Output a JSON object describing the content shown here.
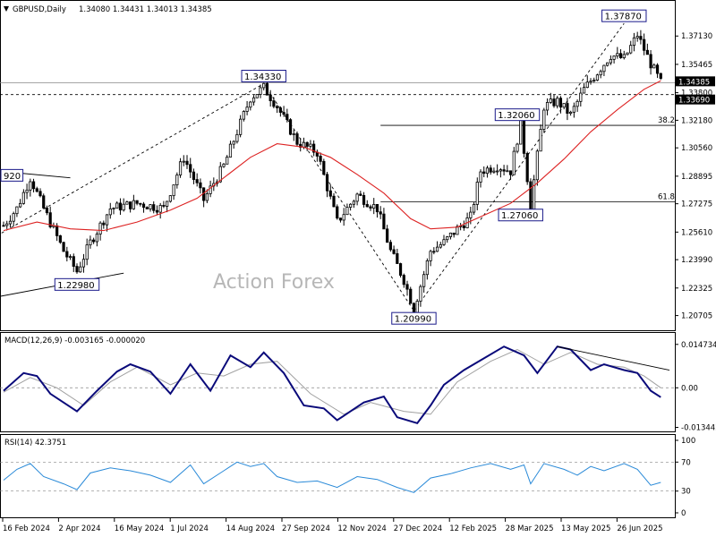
{
  "header": {
    "symbol": "GBPUSD,Daily",
    "ohlc": "1.34080 1.34431 1.34013 1.34385"
  },
  "watermark": "Action Forex",
  "colors": {
    "candle": "#000000",
    "ma": "#dd2222",
    "macd_main": "#0a0a7a",
    "macd_signal": "#a0a0a0",
    "rsi": "#2a8ad8",
    "price_tag_bg": "#000000"
  },
  "chart_data": [
    {
      "type": "candlestick",
      "title": "GBPUSD,Daily",
      "ylim": [
        1.2,
        1.383
      ],
      "y_ticks": [
        "1.37130",
        "1.35465",
        "1.33800",
        "1.32180",
        "1.30560",
        "1.28895",
        "1.27275",
        "1.25610",
        "1.23990",
        "1.22325",
        "1.20705"
      ],
      "x_ticks": [
        "16 Feb 2024",
        "2 Apr 2024",
        "16 May 2024",
        "1 Jul 2024",
        "14 Aug 2024",
        "27 Sep 2024",
        "12 Nov 2024",
        "27 Dec 2024",
        "12 Feb 2025",
        "28 Mar 2025",
        "13 May 2025",
        "26 Jun 2025"
      ],
      "close_path": [
        {
          "t": 0,
          "v": 1.26
        },
        {
          "t": 4,
          "v": 1.27
        },
        {
          "t": 8,
          "v": 1.288
        },
        {
          "t": 12,
          "v": 1.27
        },
        {
          "t": 18,
          "v": 1.245
        },
        {
          "t": 22,
          "v": 1.233
        },
        {
          "t": 26,
          "v": 1.25
        },
        {
          "t": 32,
          "v": 1.27
        },
        {
          "t": 40,
          "v": 1.273
        },
        {
          "t": 48,
          "v": 1.27
        },
        {
          "t": 54,
          "v": 1.3
        },
        {
          "t": 60,
          "v": 1.275
        },
        {
          "t": 66,
          "v": 1.295
        },
        {
          "t": 70,
          "v": 1.315
        },
        {
          "t": 74,
          "v": 1.335
        },
        {
          "t": 78,
          "v": 1.341
        },
        {
          "t": 82,
          "v": 1.33
        },
        {
          "t": 88,
          "v": 1.309
        },
        {
          "t": 94,
          "v": 1.303
        },
        {
          "t": 100,
          "v": 1.262
        },
        {
          "t": 106,
          "v": 1.278
        },
        {
          "t": 112,
          "v": 1.27
        },
        {
          "t": 116,
          "v": 1.245
        },
        {
          "t": 120,
          "v": 1.228
        },
        {
          "t": 123,
          "v": 1.211
        },
        {
          "t": 128,
          "v": 1.245
        },
        {
          "t": 132,
          "v": 1.25
        },
        {
          "t": 136,
          "v": 1.258
        },
        {
          "t": 140,
          "v": 1.265
        },
        {
          "t": 143,
          "v": 1.292
        },
        {
          "t": 148,
          "v": 1.295
        },
        {
          "t": 152,
          "v": 1.292
        },
        {
          "t": 155,
          "v": 1.32
        },
        {
          "t": 158,
          "v": 1.272
        },
        {
          "t": 162,
          "v": 1.33
        },
        {
          "t": 166,
          "v": 1.333
        },
        {
          "t": 170,
          "v": 1.325
        },
        {
          "t": 174,
          "v": 1.34
        },
        {
          "t": 178,
          "v": 1.35
        },
        {
          "t": 182,
          "v": 1.36
        },
        {
          "t": 186,
          "v": 1.358
        },
        {
          "t": 190,
          "v": 1.372
        },
        {
          "t": 194,
          "v": 1.355
        },
        {
          "t": 197,
          "v": 1.3439
        }
      ],
      "moving_average": [
        {
          "t": 0,
          "v": 1.257
        },
        {
          "t": 10,
          "v": 1.262
        },
        {
          "t": 20,
          "v": 1.258
        },
        {
          "t": 30,
          "v": 1.257
        },
        {
          "t": 40,
          "v": 1.262
        },
        {
          "t": 50,
          "v": 1.269
        },
        {
          "t": 58,
          "v": 1.276
        },
        {
          "t": 66,
          "v": 1.288
        },
        {
          "t": 74,
          "v": 1.3
        },
        {
          "t": 82,
          "v": 1.308
        },
        {
          "t": 90,
          "v": 1.306
        },
        {
          "t": 98,
          "v": 1.3
        },
        {
          "t": 106,
          "v": 1.29
        },
        {
          "t": 114,
          "v": 1.279
        },
        {
          "t": 122,
          "v": 1.264
        },
        {
          "t": 128,
          "v": 1.258
        },
        {
          "t": 136,
          "v": 1.259
        },
        {
          "t": 144,
          "v": 1.266
        },
        {
          "t": 152,
          "v": 1.273
        },
        {
          "t": 160,
          "v": 1.285
        },
        {
          "t": 168,
          "v": 1.299
        },
        {
          "t": 176,
          "v": 1.315
        },
        {
          "t": 184,
          "v": 1.328
        },
        {
          "t": 192,
          "v": 1.34
        },
        {
          "t": 197,
          "v": 1.345
        }
      ],
      "annotations": [
        {
          "label": "1.37870",
          "t": 186,
          "v": 1.3787
        },
        {
          "label": "1.34330",
          "t": 78,
          "v": 1.3433
        },
        {
          "label": "1.32060",
          "t": 154,
          "v": 1.3206
        },
        {
          "label": "1.27060",
          "t": 155,
          "v": 1.2706
        },
        {
          "label": "1.22980",
          "t": 22,
          "v": 1.2298
        },
        {
          "label": "1.20990",
          "t": 123,
          "v": 1.2099
        },
        {
          "label": "920",
          "t": 0,
          "v": 1.2892
        }
      ],
      "fib_levels": [
        {
          "label": "38.2",
          "v": 1.3188
        },
        {
          "label": "61.8",
          "v": 1.2738
        }
      ],
      "horizontal_lines": [
        {
          "label": "1.34385",
          "v": 1.3439
        },
        {
          "label": "1.33690",
          "v": 1.3369
        }
      ],
      "trendlines": [
        {
          "from": {
            "t": -2,
            "v": 1.254
          },
          "to": {
            "t": 78,
            "v": 1.3433
          }
        },
        {
          "from": {
            "t": 78,
            "v": 1.3433
          },
          "to": {
            "t": 123,
            "v": 1.2099
          }
        },
        {
          "from": {
            "t": 123,
            "v": 1.2099
          },
          "to": {
            "t": 186,
            "v": 1.3787
          }
        },
        {
          "from": {
            "t": -2,
            "v": 1.218
          },
          "to": {
            "t": 36,
            "v": 1.232
          }
        },
        {
          "from": {
            "t": -2,
            "v": 1.292
          },
          "to": {
            "t": 20,
            "v": 1.288
          }
        }
      ]
    },
    {
      "type": "line",
      "title": "MACD(12,26,9) -0.003165 -0.000020",
      "ylim": [
        -0.0142,
        0.0168
      ],
      "y_ticks": [
        "0.014734",
        "0.00",
        "-0.013442"
      ],
      "series": [
        {
          "name": "main",
          "values": [
            {
              "t": 0,
              "v": -0.001
            },
            {
              "t": 6,
              "v": 0.005
            },
            {
              "t": 10,
              "v": 0.004
            },
            {
              "t": 14,
              "v": -0.002
            },
            {
              "t": 22,
              "v": -0.008
            },
            {
              "t": 28,
              "v": -0.001
            },
            {
              "t": 34,
              "v": 0.0055
            },
            {
              "t": 38,
              "v": 0.008
            },
            {
              "t": 44,
              "v": 0.0055
            },
            {
              "t": 50,
              "v": -0.002
            },
            {
              "t": 56,
              "v": 0.008
            },
            {
              "t": 62,
              "v": -0.001
            },
            {
              "t": 68,
              "v": 0.011
            },
            {
              "t": 74,
              "v": 0.007
            },
            {
              "t": 78,
              "v": 0.012
            },
            {
              "t": 84,
              "v": 0.005
            },
            {
              "t": 90,
              "v": -0.006
            },
            {
              "t": 96,
              "v": -0.007
            },
            {
              "t": 100,
              "v": -0.011
            },
            {
              "t": 104,
              "v": -0.008
            },
            {
              "t": 108,
              "v": -0.005
            },
            {
              "t": 114,
              "v": -0.003
            },
            {
              "t": 118,
              "v": -0.01
            },
            {
              "t": 124,
              "v": -0.012
            },
            {
              "t": 128,
              "v": -0.006
            },
            {
              "t": 132,
              "v": 0.001
            },
            {
              "t": 138,
              "v": 0.006
            },
            {
              "t": 144,
              "v": 0.01
            },
            {
              "t": 150,
              "v": 0.014
            },
            {
              "t": 156,
              "v": 0.011
            },
            {
              "t": 160,
              "v": 0.005
            },
            {
              "t": 166,
              "v": 0.014
            },
            {
              "t": 170,
              "v": 0.013
            },
            {
              "t": 176,
              "v": 0.006
            },
            {
              "t": 180,
              "v": 0.008
            },
            {
              "t": 186,
              "v": 0.006
            },
            {
              "t": 190,
              "v": 0.005
            },
            {
              "t": 194,
              "v": -0.001
            },
            {
              "t": 197,
              "v": -0.0032
            }
          ]
        },
        {
          "name": "signal",
          "values": [
            {
              "t": 0,
              "v": -0.0015
            },
            {
              "t": 8,
              "v": 0.0035
            },
            {
              "t": 16,
              "v": 0.0
            },
            {
              "t": 24,
              "v": -0.006
            },
            {
              "t": 32,
              "v": 0.002
            },
            {
              "t": 40,
              "v": 0.007
            },
            {
              "t": 50,
              "v": 0.001
            },
            {
              "t": 58,
              "v": 0.005
            },
            {
              "t": 66,
              "v": 0.004
            },
            {
              "t": 74,
              "v": 0.008
            },
            {
              "t": 82,
              "v": 0.009
            },
            {
              "t": 92,
              "v": -0.002
            },
            {
              "t": 102,
              "v": -0.009
            },
            {
              "t": 110,
              "v": -0.005
            },
            {
              "t": 120,
              "v": -0.008
            },
            {
              "t": 128,
              "v": -0.009
            },
            {
              "t": 136,
              "v": 0.002
            },
            {
              "t": 146,
              "v": 0.009
            },
            {
              "t": 154,
              "v": 0.013
            },
            {
              "t": 162,
              "v": 0.008
            },
            {
              "t": 170,
              "v": 0.012
            },
            {
              "t": 178,
              "v": 0.008
            },
            {
              "t": 186,
              "v": 0.007
            },
            {
              "t": 192,
              "v": 0.004
            },
            {
              "t": 197,
              "v": 0.0
            }
          ]
        }
      ],
      "trendline": {
        "from": {
          "t": 166,
          "v": 0.014
        },
        "to": {
          "t": 198,
          "v": 0.006
        }
      }
    },
    {
      "type": "line",
      "title": "RSI(14) 42.3751",
      "ylim": [
        0,
        100
      ],
      "y_ticks": [
        "100",
        "70",
        "30",
        "0"
      ],
      "levels": [
        70,
        30
      ],
      "series": [
        {
          "name": "RSI",
          "values": [
            {
              "t": 0,
              "v": 45
            },
            {
              "t": 4,
              "v": 60
            },
            {
              "t": 8,
              "v": 68
            },
            {
              "t": 12,
              "v": 50
            },
            {
              "t": 18,
              "v": 40
            },
            {
              "t": 22,
              "v": 32
            },
            {
              "t": 26,
              "v": 55
            },
            {
              "t": 32,
              "v": 62
            },
            {
              "t": 38,
              "v": 58
            },
            {
              "t": 44,
              "v": 52
            },
            {
              "t": 50,
              "v": 42
            },
            {
              "t": 56,
              "v": 66
            },
            {
              "t": 60,
              "v": 40
            },
            {
              "t": 66,
              "v": 58
            },
            {
              "t": 70,
              "v": 70
            },
            {
              "t": 74,
              "v": 64
            },
            {
              "t": 78,
              "v": 68
            },
            {
              "t": 82,
              "v": 50
            },
            {
              "t": 88,
              "v": 42
            },
            {
              "t": 94,
              "v": 44
            },
            {
              "t": 100,
              "v": 35
            },
            {
              "t": 106,
              "v": 50
            },
            {
              "t": 112,
              "v": 46
            },
            {
              "t": 118,
              "v": 35
            },
            {
              "t": 123,
              "v": 28
            },
            {
              "t": 128,
              "v": 48
            },
            {
              "t": 134,
              "v": 54
            },
            {
              "t": 140,
              "v": 62
            },
            {
              "t": 146,
              "v": 68
            },
            {
              "t": 152,
              "v": 60
            },
            {
              "t": 156,
              "v": 66
            },
            {
              "t": 158,
              "v": 40
            },
            {
              "t": 162,
              "v": 68
            },
            {
              "t": 168,
              "v": 60
            },
            {
              "t": 172,
              "v": 52
            },
            {
              "t": 176,
              "v": 64
            },
            {
              "t": 180,
              "v": 58
            },
            {
              "t": 186,
              "v": 68
            },
            {
              "t": 190,
              "v": 60
            },
            {
              "t": 194,
              "v": 38
            },
            {
              "t": 197,
              "v": 42
            }
          ]
        }
      ]
    }
  ]
}
